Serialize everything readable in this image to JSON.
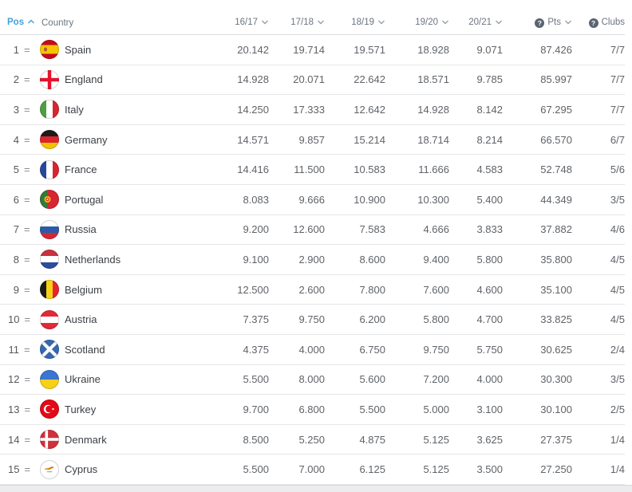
{
  "icons": {
    "help_glyph": "?"
  },
  "colors": {
    "accent_sort_active": "#41a1da",
    "header_text": "#6b7580",
    "row_text": "#5f6368",
    "country_text": "#3b3f44",
    "divider": "#e5e6e8",
    "help_icon_bg": "#5b6470"
  },
  "table": {
    "header": {
      "pos_label": "Pos",
      "country_label": "Country",
      "seasons": [
        "16/17",
        "17/18",
        "18/19",
        "19/20",
        "20/21"
      ],
      "pts_label": "Pts",
      "clubs_label": "Clubs",
      "sorted_by": "Pos",
      "sort_direction": "asc"
    },
    "rows": [
      {
        "pos": "1",
        "trend": "=",
        "country": "Spain",
        "flag": "spain-flag",
        "values": [
          "20.142",
          "19.714",
          "19.571",
          "18.928",
          "9.071"
        ],
        "pts": "87.426",
        "clubs": "7/7"
      },
      {
        "pos": "2",
        "trend": "=",
        "country": "England",
        "flag": "england-flag",
        "values": [
          "14.928",
          "20.071",
          "22.642",
          "18.571",
          "9.785"
        ],
        "pts": "85.997",
        "clubs": "7/7"
      },
      {
        "pos": "3",
        "trend": "=",
        "country": "Italy",
        "flag": "italy-flag",
        "values": [
          "14.250",
          "17.333",
          "12.642",
          "14.928",
          "8.142"
        ],
        "pts": "67.295",
        "clubs": "7/7"
      },
      {
        "pos": "4",
        "trend": "=",
        "country": "Germany",
        "flag": "germany-flag",
        "values": [
          "14.571",
          "9.857",
          "15.214",
          "18.714",
          "8.214"
        ],
        "pts": "66.570",
        "clubs": "6/7"
      },
      {
        "pos": "5",
        "trend": "=",
        "country": "France",
        "flag": "france-flag",
        "values": [
          "14.416",
          "11.500",
          "10.583",
          "11.666",
          "4.583"
        ],
        "pts": "52.748",
        "clubs": "5/6"
      },
      {
        "pos": "6",
        "trend": "=",
        "country": "Portugal",
        "flag": "portugal-flag",
        "values": [
          "8.083",
          "9.666",
          "10.900",
          "10.300",
          "5.400"
        ],
        "pts": "44.349",
        "clubs": "3/5"
      },
      {
        "pos": "7",
        "trend": "=",
        "country": "Russia",
        "flag": "russia-flag",
        "values": [
          "9.200",
          "12.600",
          "7.583",
          "4.666",
          "3.833"
        ],
        "pts": "37.882",
        "clubs": "4/6"
      },
      {
        "pos": "8",
        "trend": "=",
        "country": "Netherlands",
        "flag": "netherlands-flag",
        "values": [
          "9.100",
          "2.900",
          "8.600",
          "9.400",
          "5.800"
        ],
        "pts": "35.800",
        "clubs": "4/5"
      },
      {
        "pos": "9",
        "trend": "=",
        "country": "Belgium",
        "flag": "belgium-flag",
        "values": [
          "12.500",
          "2.600",
          "7.800",
          "7.600",
          "4.600"
        ],
        "pts": "35.100",
        "clubs": "4/5"
      },
      {
        "pos": "10",
        "trend": "=",
        "country": "Austria",
        "flag": "austria-flag",
        "values": [
          "7.375",
          "9.750",
          "6.200",
          "5.800",
          "4.700"
        ],
        "pts": "33.825",
        "clubs": "4/5"
      },
      {
        "pos": "11",
        "trend": "=",
        "country": "Scotland",
        "flag": "scotland-flag",
        "values": [
          "4.375",
          "4.000",
          "6.750",
          "9.750",
          "5.750"
        ],
        "pts": "30.625",
        "clubs": "2/4"
      },
      {
        "pos": "12",
        "trend": "=",
        "country": "Ukraine",
        "flag": "ukraine-flag",
        "values": [
          "5.500",
          "8.000",
          "5.600",
          "7.200",
          "4.000"
        ],
        "pts": "30.300",
        "clubs": "3/5"
      },
      {
        "pos": "13",
        "trend": "=",
        "country": "Turkey",
        "flag": "turkey-flag",
        "values": [
          "9.700",
          "6.800",
          "5.500",
          "5.000",
          "3.100"
        ],
        "pts": "30.100",
        "clubs": "2/5"
      },
      {
        "pos": "14",
        "trend": "=",
        "country": "Denmark",
        "flag": "denmark-flag",
        "values": [
          "8.500",
          "5.250",
          "4.875",
          "5.125",
          "3.625"
        ],
        "pts": "27.375",
        "clubs": "1/4"
      },
      {
        "pos": "15",
        "trend": "=",
        "country": "Cyprus",
        "flag": "cyprus-flag",
        "values": [
          "5.500",
          "7.000",
          "6.125",
          "5.125",
          "3.500"
        ],
        "pts": "27.250",
        "clubs": "1/4"
      }
    ]
  }
}
